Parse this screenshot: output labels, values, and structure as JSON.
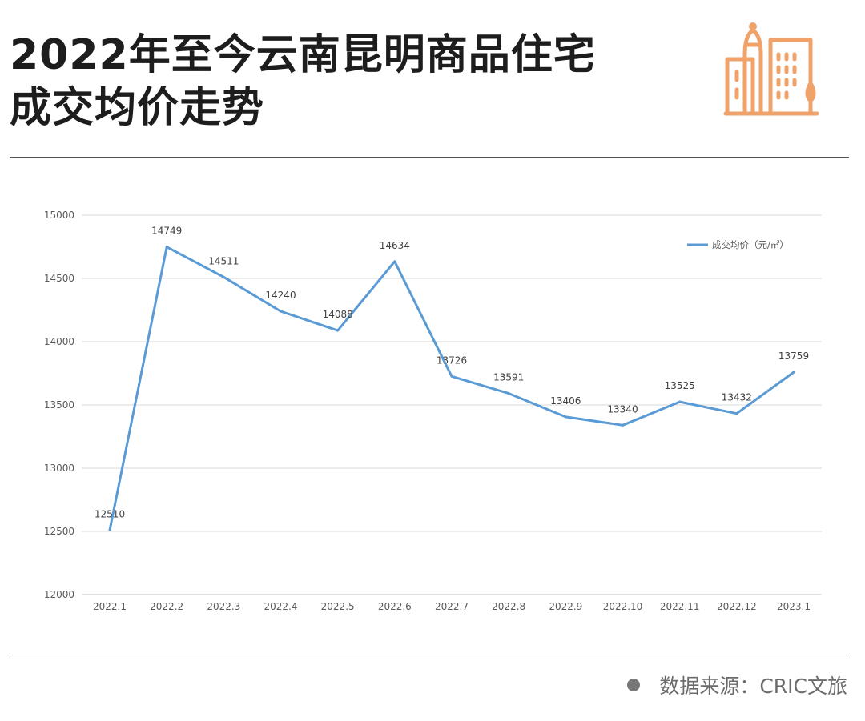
{
  "title": {
    "line1": "2022年至今云南昆明商品住宅",
    "line2": "成交均价走势"
  },
  "logo": {
    "icon": "city-buildings-icon",
    "color": "#f0a26b"
  },
  "chart_data": {
    "type": "line",
    "categories": [
      "2022.1",
      "2022.2",
      "2022.3",
      "2022.4",
      "2022.5",
      "2022.6",
      "2022.7",
      "2022.8",
      "2022.9",
      "2022.10",
      "2022.11",
      "2022.12",
      "2023.1"
    ],
    "series": [
      {
        "name": "成交均价（元/㎡）",
        "values": [
          12510,
          14749,
          14511,
          14240,
          14088,
          14634,
          13726,
          13591,
          13406,
          13340,
          13525,
          13432,
          13759
        ]
      }
    ],
    "data_labels": [
      "12510",
      "14749",
      "14511",
      "14240",
      "14088",
      "14634",
      "13726",
      "13591",
      "13406",
      "13340",
      "13525",
      "13432",
      "13759"
    ],
    "y_ticks": [
      "12000",
      "12500",
      "13000",
      "13500",
      "14000",
      "14500",
      "15000"
    ],
    "ylim": [
      12000,
      15000
    ],
    "y_step": 500,
    "grid": true,
    "legend_position": "top-right",
    "line_color": "#5b9bd5"
  },
  "source": {
    "text": "数据来源：CRIC文旅"
  }
}
